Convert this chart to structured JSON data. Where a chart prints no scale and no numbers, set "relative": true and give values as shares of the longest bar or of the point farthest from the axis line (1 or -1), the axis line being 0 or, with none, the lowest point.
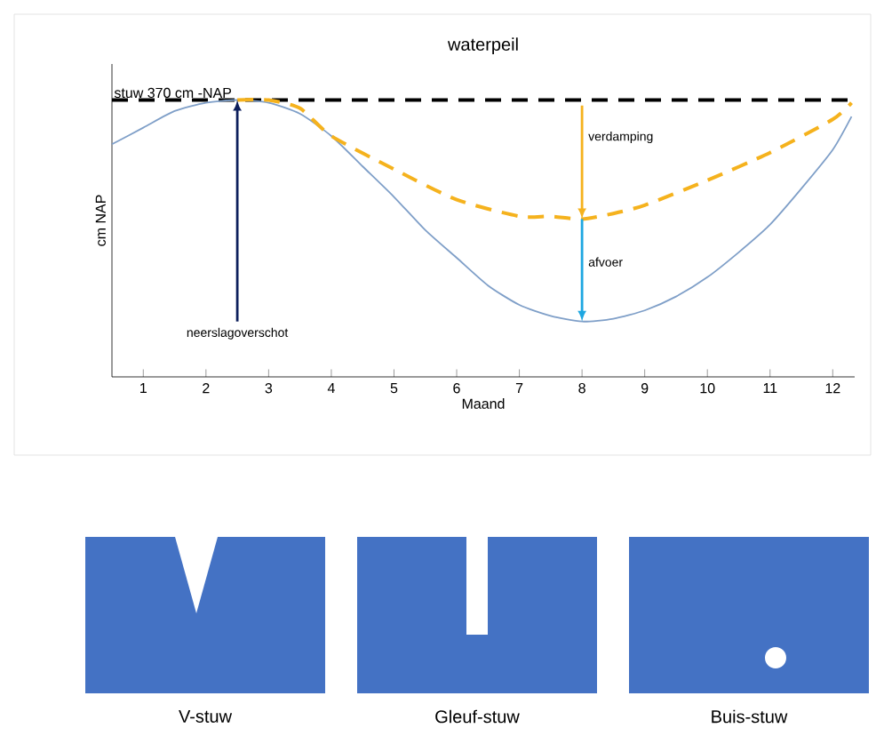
{
  "chart_data": {
    "type": "line",
    "title": "waterpeil",
    "xlabel": "Maand",
    "ylabel": "cm NAP",
    "relative": true,
    "grid": false,
    "marker": "none",
    "xlim": [
      0.5,
      12.35
    ],
    "xticks": [
      1,
      2,
      3,
      4,
      5,
      6,
      7,
      8,
      9,
      10,
      11,
      12
    ],
    "series": [
      {
        "color": "#7f9fc8",
        "line_style": "solid",
        "x": [
          0.5,
          1,
          1.5,
          2,
          2.5,
          3,
          3.5,
          4,
          4.5,
          5,
          5.5,
          6,
          6.5,
          7,
          7.5,
          8,
          8.5,
          9,
          9.5,
          10,
          10.5,
          11,
          11.5,
          12,
          12.3
        ],
        "values": [
          0.84,
          0.9,
          0.96,
          0.99,
          1.0,
          0.99,
          0.95,
          0.87,
          0.76,
          0.65,
          0.53,
          0.43,
          0.33,
          0.26,
          0.22,
          0.2,
          0.21,
          0.24,
          0.29,
          0.36,
          0.45,
          0.55,
          0.68,
          0.82,
          0.94
        ]
      },
      {
        "color": "#f5b21d",
        "line_style": "dashed",
        "x": [
          2.5,
          3,
          3.5,
          4,
          5,
          6,
          7,
          7.5,
          8,
          8.5,
          9,
          10,
          11,
          12,
          12.3
        ],
        "values": [
          1.0,
          1.0,
          0.97,
          0.87,
          0.75,
          0.64,
          0.58,
          0.58,
          0.57,
          0.59,
          0.62,
          0.71,
          0.81,
          0.93,
          0.99
        ]
      }
    ],
    "ref_lines": [
      {
        "axis": "y",
        "value": 1,
        "label": "stuw 370 cm -NAP",
        "color": "#000000",
        "line_style": "dashed"
      }
    ],
    "annotations": [
      "neerslagoverschot",
      "verdamping",
      "afvoer",
      "V-stuw",
      "Gleuf-stuw",
      "Buis-stuw"
    ]
  }
}
